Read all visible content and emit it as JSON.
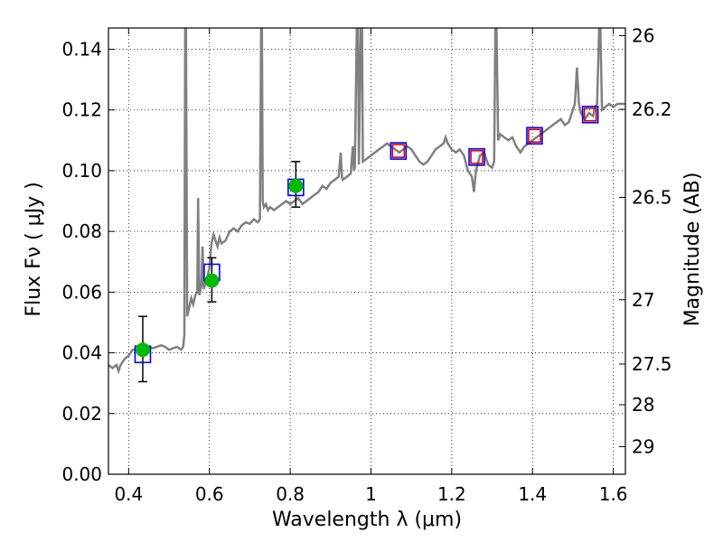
{
  "chart_data": {
    "type": "line",
    "xlabel": "Wavelength  λ (μm)",
    "ylabel": "Flux  Fν  ( μJy )",
    "ylabel_right": "Magnitude (AB)",
    "xlim": [
      0.35,
      1.63
    ],
    "ylim": [
      0,
      0.147
    ],
    "grid": true,
    "x_ticks": [
      0.4,
      0.6,
      0.8,
      1.0,
      1.2,
      1.4,
      1.6
    ],
    "x_tick_labels": [
      "0.4",
      "0.6",
      "0.8",
      "1",
      "1.2",
      "1.4",
      "1.6"
    ],
    "y_ticks": [
      0,
      0.02,
      0.04,
      0.06,
      0.08,
      0.1,
      0.12,
      0.14
    ],
    "y_tick_labels": [
      "0.00",
      "0.02",
      "0.04",
      "0.06",
      "0.08",
      "0.10",
      "0.12",
      "0.14"
    ],
    "right_axis_ticks": [
      {
        "label": "26",
        "flux": 0.1445
      },
      {
        "label": "26.2",
        "flux": 0.1202
      },
      {
        "label": "26.5",
        "flux": 0.0912
      },
      {
        "label": "27",
        "flux": 0.0575
      },
      {
        "label": "27.5",
        "flux": 0.0363
      },
      {
        "label": "28",
        "flux": 0.0229
      },
      {
        "label": "29",
        "flux": 0.0091
      }
    ],
    "spectrum": {
      "color": "#808080",
      "points": [
        [
          0.35,
          0.036
        ],
        [
          0.36,
          0.035
        ],
        [
          0.37,
          0.036
        ],
        [
          0.375,
          0.034
        ],
        [
          0.38,
          0.036
        ],
        [
          0.39,
          0.038
        ],
        [
          0.4,
          0.039
        ],
        [
          0.41,
          0.041
        ],
        [
          0.42,
          0.041
        ],
        [
          0.43,
          0.0405
        ],
        [
          0.44,
          0.041
        ],
        [
          0.45,
          0.042
        ],
        [
          0.46,
          0.0415
        ],
        [
          0.47,
          0.042
        ],
        [
          0.48,
          0.0425
        ],
        [
          0.49,
          0.042
        ],
        [
          0.5,
          0.041
        ],
        [
          0.51,
          0.0415
        ],
        [
          0.52,
          0.042
        ],
        [
          0.53,
          0.041
        ],
        [
          0.535,
          0.042
        ],
        [
          0.538,
          0.046
        ],
        [
          0.54,
          0.147
        ],
        [
          0.542,
          0.147
        ],
        [
          0.545,
          0.052
        ],
        [
          0.55,
          0.055
        ],
        [
          0.555,
          0.058
        ],
        [
          0.56,
          0.056
        ],
        [
          0.565,
          0.059
        ],
        [
          0.57,
          0.06
        ],
        [
          0.572,
          0.091
        ],
        [
          0.575,
          0.059
        ],
        [
          0.58,
          0.062
        ],
        [
          0.583,
          0.075
        ],
        [
          0.586,
          0.061
        ],
        [
          0.59,
          0.063
        ],
        [
          0.595,
          0.065
        ],
        [
          0.6,
          0.068
        ],
        [
          0.605,
          0.076
        ],
        [
          0.61,
          0.079
        ],
        [
          0.615,
          0.077
        ],
        [
          0.62,
          0.075
        ],
        [
          0.625,
          0.078
        ],
        [
          0.63,
          0.076
        ],
        [
          0.64,
          0.077
        ],
        [
          0.65,
          0.08
        ],
        [
          0.66,
          0.081
        ],
        [
          0.67,
          0.08
        ],
        [
          0.68,
          0.082
        ],
        [
          0.69,
          0.083
        ],
        [
          0.7,
          0.0825
        ],
        [
          0.71,
          0.084
        ],
        [
          0.72,
          0.083
        ],
        [
          0.725,
          0.084
        ],
        [
          0.728,
          0.147
        ],
        [
          0.73,
          0.147
        ],
        [
          0.732,
          0.09
        ],
        [
          0.735,
          0.088
        ],
        [
          0.74,
          0.089
        ],
        [
          0.745,
          0.087
        ],
        [
          0.75,
          0.088
        ],
        [
          0.76,
          0.087
        ],
        [
          0.77,
          0.088
        ],
        [
          0.78,
          0.089
        ],
        [
          0.79,
          0.09
        ],
        [
          0.8,
          0.089
        ],
        [
          0.81,
          0.09
        ],
        [
          0.82,
          0.091
        ],
        [
          0.83,
          0.089
        ],
        [
          0.84,
          0.09
        ],
        [
          0.85,
          0.091
        ],
        [
          0.86,
          0.092
        ],
        [
          0.87,
          0.093
        ],
        [
          0.88,
          0.095
        ],
        [
          0.89,
          0.094
        ],
        [
          0.9,
          0.096
        ],
        [
          0.91,
          0.097
        ],
        [
          0.92,
          0.098
        ],
        [
          0.925,
          0.106
        ],
        [
          0.928,
          0.098
        ],
        [
          0.93,
          0.097
        ],
        [
          0.94,
          0.098
        ],
        [
          0.95,
          0.099
        ],
        [
          0.955,
          0.108
        ],
        [
          0.958,
          0.1
        ],
        [
          0.96,
          0.101
        ],
        [
          0.965,
          0.147
        ],
        [
          0.968,
          0.147
        ],
        [
          0.97,
          0.102
        ],
        [
          0.975,
          0.147
        ],
        [
          0.978,
          0.147
        ],
        [
          0.98,
          0.103
        ],
        [
          0.99,
          0.104
        ],
        [
          1.0,
          0.105
        ],
        [
          1.01,
          0.106
        ],
        [
          1.02,
          0.107
        ],
        [
          1.03,
          0.108
        ],
        [
          1.04,
          0.109
        ],
        [
          1.05,
          0.108
        ],
        [
          1.06,
          0.107
        ],
        [
          1.07,
          0.106
        ],
        [
          1.08,
          0.107
        ],
        [
          1.09,
          0.108
        ],
        [
          1.1,
          0.107
        ],
        [
          1.11,
          0.105
        ],
        [
          1.12,
          0.103
        ],
        [
          1.13,
          0.102
        ],
        [
          1.14,
          0.103
        ],
        [
          1.15,
          0.105
        ],
        [
          1.16,
          0.107
        ],
        [
          1.17,
          0.108
        ],
        [
          1.18,
          0.109
        ],
        [
          1.185,
          0.111
        ],
        [
          1.19,
          0.109
        ],
        [
          1.2,
          0.107
        ],
        [
          1.21,
          0.106
        ],
        [
          1.22,
          0.107
        ],
        [
          1.23,
          0.105
        ],
        [
          1.24,
          0.1
        ],
        [
          1.25,
          0.098
        ],
        [
          1.255,
          0.093
        ],
        [
          1.26,
          0.1
        ],
        [
          1.27,
          0.105
        ],
        [
          1.28,
          0.106
        ],
        [
          1.29,
          0.102
        ],
        [
          1.3,
          0.101
        ],
        [
          1.305,
          0.103
        ],
        [
          1.308,
          0.147
        ],
        [
          1.311,
          0.147
        ],
        [
          1.315,
          0.11
        ],
        [
          1.32,
          0.112
        ],
        [
          1.33,
          0.111
        ],
        [
          1.34,
          0.11
        ],
        [
          1.35,
          0.111
        ],
        [
          1.36,
          0.108
        ],
        [
          1.37,
          0.106
        ],
        [
          1.38,
          0.108
        ],
        [
          1.39,
          0.109
        ],
        [
          1.4,
          0.11
        ],
        [
          1.41,
          0.111
        ],
        [
          1.42,
          0.112
        ],
        [
          1.43,
          0.113
        ],
        [
          1.44,
          0.114
        ],
        [
          1.45,
          0.115
        ],
        [
          1.46,
          0.116
        ],
        [
          1.47,
          0.117
        ],
        [
          1.48,
          0.115
        ],
        [
          1.49,
          0.116
        ],
        [
          1.5,
          0.12
        ],
        [
          1.505,
          0.122
        ],
        [
          1.51,
          0.134
        ],
        [
          1.515,
          0.122
        ],
        [
          1.52,
          0.119
        ],
        [
          1.53,
          0.117
        ],
        [
          1.54,
          0.119
        ],
        [
          1.55,
          0.118
        ],
        [
          1.555,
          0.121
        ],
        [
          1.56,
          0.122
        ],
        [
          1.565,
          0.147
        ],
        [
          1.568,
          0.147
        ],
        [
          1.572,
          0.12
        ],
        [
          1.58,
          0.121
        ],
        [
          1.59,
          0.122
        ],
        [
          1.6,
          0.121
        ],
        [
          1.61,
          0.122
        ],
        [
          1.62,
          0.122
        ],
        [
          1.63,
          0.122
        ]
      ]
    },
    "photometry": {
      "marker_color": "#00bb00",
      "errorbar_color": "#000000",
      "points": [
        {
          "x": 0.435,
          "y": 0.041,
          "yerr_low": 0.0105,
          "yerr_high": 0.011
        },
        {
          "x": 0.606,
          "y": 0.0638,
          "yerr_low": 0.007,
          "yerr_high": 0.0075
        },
        {
          "x": 0.814,
          "y": 0.095,
          "yerr_low": 0.007,
          "yerr_high": 0.008
        }
      ]
    },
    "model_boxes": {
      "color": "#0000ff",
      "points": [
        {
          "x": 0.435,
          "y": 0.0395
        },
        {
          "x": 0.606,
          "y": 0.0665
        },
        {
          "x": 0.814,
          "y": 0.0945
        },
        {
          "x": 1.068,
          "y": 0.1065
        },
        {
          "x": 1.262,
          "y": 0.1045
        },
        {
          "x": 1.405,
          "y": 0.1115
        },
        {
          "x": 1.543,
          "y": 0.1185
        }
      ]
    },
    "upper_limit_boxes": {
      "color": "#dd0000",
      "points": [
        {
          "x": 1.068,
          "y": 0.1065
        },
        {
          "x": 1.262,
          "y": 0.1045
        },
        {
          "x": 1.405,
          "y": 0.1115
        },
        {
          "x": 1.543,
          "y": 0.1185
        }
      ]
    }
  }
}
